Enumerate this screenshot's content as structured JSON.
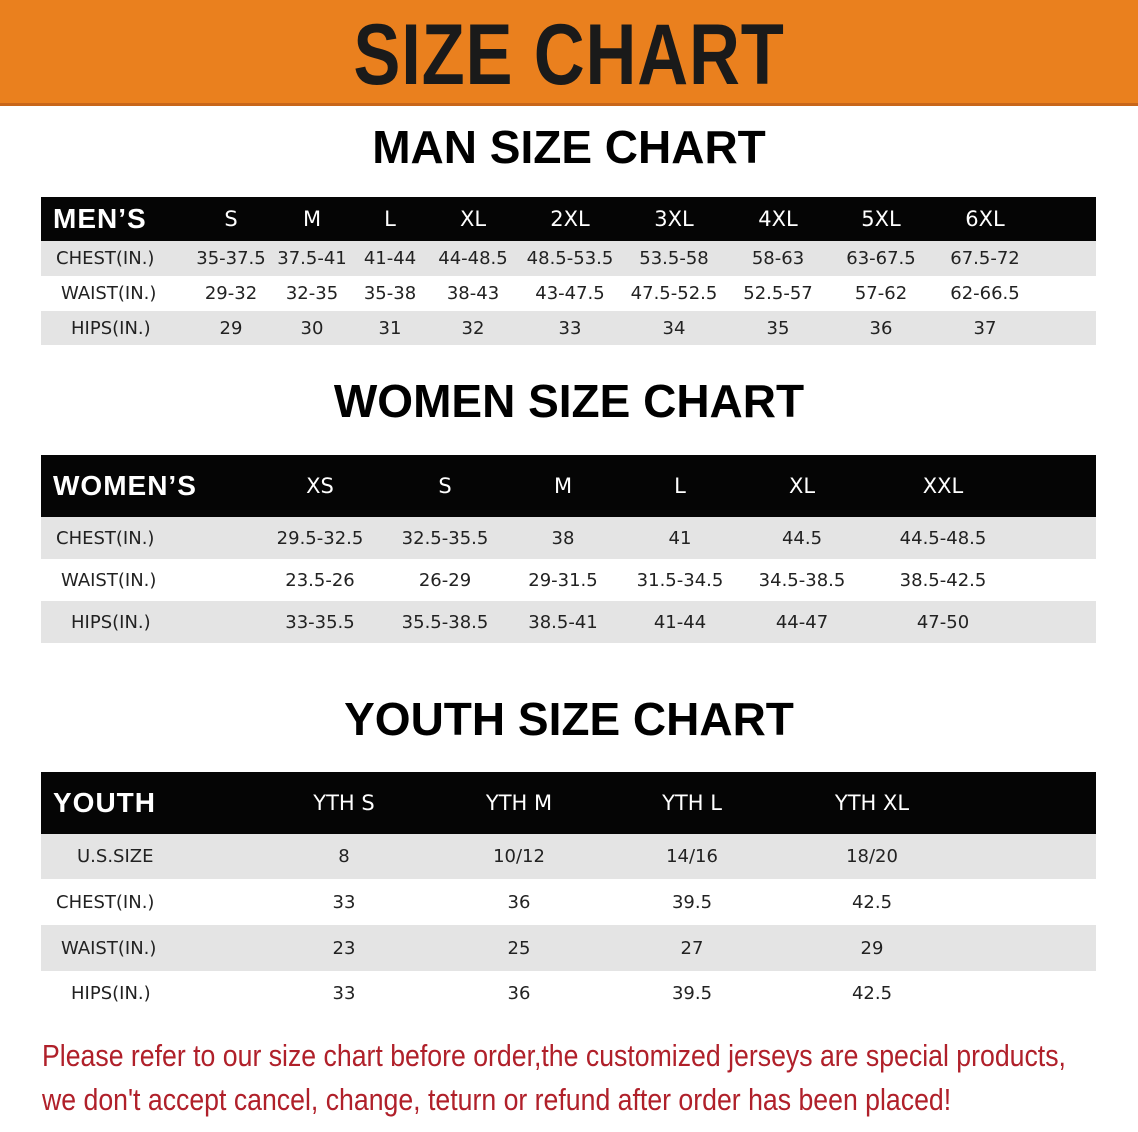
{
  "banner": {
    "title": "SIZE CHART",
    "color": "#ea801e"
  },
  "men": {
    "title": "MAN SIZE CHART",
    "header": "MEN’S",
    "sizes": [
      "S",
      "M",
      "L",
      "XL",
      "2XL",
      "3XL",
      "4XL",
      "5XL",
      "6XL"
    ],
    "rows": [
      {
        "label": "CHEST(IN.)",
        "values": [
          "35-37.5",
          "37.5-41",
          "41-44",
          "44-48.5",
          "48.5-53.5",
          "53.5-58",
          "58-63",
          "63-67.5",
          "67.5-72"
        ]
      },
      {
        "label": "WAIST(IN.)",
        "values": [
          "29-32",
          "32-35",
          "35-38",
          "38-43",
          "43-47.5",
          "47.5-52.5",
          "52.5-57",
          "57-62",
          "62-66.5"
        ]
      },
      {
        "label": "HIPS(IN.)",
        "values": [
          "29",
          "30",
          "31",
          "32",
          "33",
          "34",
          "35",
          "36",
          "37"
        ]
      }
    ]
  },
  "women": {
    "title": "WOMEN SIZE CHART",
    "header": "WOMEN’S",
    "sizes": [
      "XS",
      "S",
      "M",
      "L",
      "XL",
      "XXL"
    ],
    "rows": [
      {
        "label": "CHEST(IN.)",
        "values": [
          "29.5-32.5",
          "32.5-35.5",
          "38",
          "41",
          "44.5",
          "44.5-48.5"
        ]
      },
      {
        "label": "WAIST(IN.)",
        "values": [
          "23.5-26",
          "26-29",
          "29-31.5",
          "31.5-34.5",
          "34.5-38.5",
          "38.5-42.5"
        ]
      },
      {
        "label": "HIPS(IN.)",
        "values": [
          "33-35.5",
          "35.5-38.5",
          "38.5-41",
          "41-44",
          "44-47",
          "47-50"
        ]
      }
    ]
  },
  "youth": {
    "title": "YOUTH SIZE CHART",
    "header": "YOUTH",
    "sizes": [
      "YTH S",
      "YTH M",
      "YTH L",
      "YTH XL"
    ],
    "rows": [
      {
        "label": "U.S.SIZE",
        "values": [
          "8",
          "10/12",
          "14/16",
          "18/20"
        ]
      },
      {
        "label": "CHEST(IN.)",
        "values": [
          "33",
          "36",
          "39.5",
          "42.5"
        ]
      },
      {
        "label": "WAIST(IN.)",
        "values": [
          "23",
          "25",
          "27",
          "29"
        ]
      },
      {
        "label": "HIPS(IN.)",
        "values": [
          "33",
          "36",
          "39.5",
          "42.5"
        ]
      }
    ]
  },
  "notice": {
    "line1": "Please refer to our size chart before order,the customized jerseys are special products,",
    "line2": "we don't accept cancel, change, teturn or refund after order has been placed!",
    "color": "#b0202a"
  }
}
